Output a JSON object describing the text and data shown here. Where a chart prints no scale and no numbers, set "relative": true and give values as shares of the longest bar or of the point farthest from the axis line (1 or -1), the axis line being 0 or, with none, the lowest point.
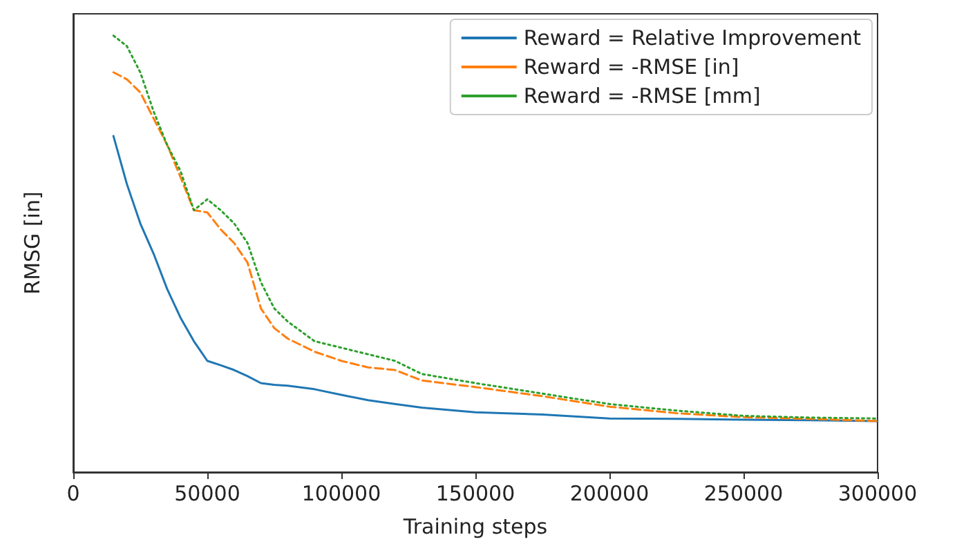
{
  "chart_data": {
    "type": "line",
    "xlabel": "Training steps",
    "ylabel": "RMSG [in]",
    "relative": true,
    "xlim": [
      0,
      300000
    ],
    "xticks": [
      0,
      50000,
      100000,
      150000,
      200000,
      250000,
      300000
    ],
    "grid": false,
    "legend": "top right",
    "marker": "none",
    "x": [
      15000,
      20000,
      25000,
      30000,
      35000,
      40000,
      45000,
      50000,
      55000,
      60000,
      65000,
      70000,
      75000,
      80000,
      90000,
      100000,
      110000,
      120000,
      130000,
      150000,
      175000,
      200000,
      225000,
      250000,
      275000,
      300000
    ],
    "series": [
      {
        "name": "Reward = Relative Improvement",
        "color": "#1f77b4",
        "line_style": "solid",
        "values": [
          0.77,
          0.66,
          0.57,
          0.5,
          0.42,
          0.354,
          0.3,
          0.255,
          0.245,
          0.234,
          0.22,
          0.204,
          0.2,
          0.198,
          0.19,
          0.177,
          0.165,
          0.156,
          0.148,
          0.137,
          0.132,
          0.123,
          0.122,
          0.12,
          0.119,
          0.117
        ]
      },
      {
        "name": "Reward = -RMSE [in]",
        "color": "#ff7f0e",
        "line_style": "dashed",
        "values": [
          0.916,
          0.9,
          0.87,
          0.81,
          0.75,
          0.676,
          0.6,
          0.595,
          0.556,
          0.525,
          0.48,
          0.375,
          0.33,
          0.306,
          0.276,
          0.255,
          0.24,
          0.234,
          0.21,
          0.195,
          0.174,
          0.15,
          0.135,
          0.126,
          0.122,
          0.117
        ]
      },
      {
        "name": "Reward = -RMSE [mm]",
        "color": "#2ca02c",
        "line_style": "dotted",
        "values": [
          1.0,
          0.976,
          0.916,
          0.826,
          0.75,
          0.69,
          0.6,
          0.625,
          0.6,
          0.57,
          0.525,
          0.435,
          0.375,
          0.345,
          0.3,
          0.285,
          0.27,
          0.255,
          0.225,
          0.204,
          0.18,
          0.156,
          0.141,
          0.129,
          0.125,
          0.123
        ]
      }
    ]
  }
}
